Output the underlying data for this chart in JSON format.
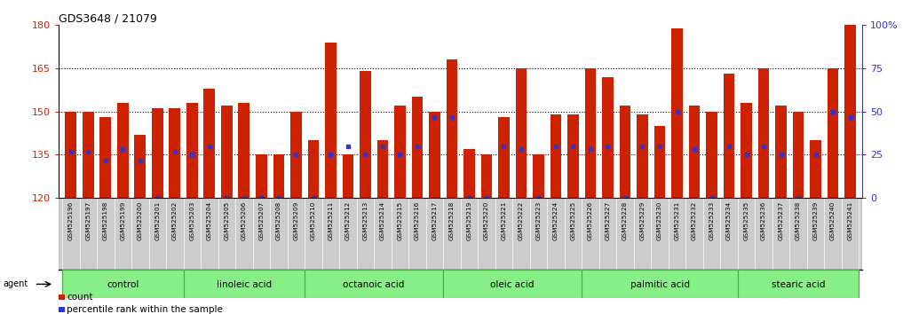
{
  "title": "GDS3648 / 21079",
  "samples": [
    "GSM525196",
    "GSM525197",
    "GSM525198",
    "GSM525199",
    "GSM525200",
    "GSM525201",
    "GSM525202",
    "GSM525203",
    "GSM525204",
    "GSM525205",
    "GSM525206",
    "GSM525207",
    "GSM525208",
    "GSM525209",
    "GSM525210",
    "GSM525211",
    "GSM525212",
    "GSM525213",
    "GSM525214",
    "GSM525215",
    "GSM525216",
    "GSM525217",
    "GSM525218",
    "GSM525219",
    "GSM525220",
    "GSM525221",
    "GSM525222",
    "GSM525223",
    "GSM525224",
    "GSM525225",
    "GSM525226",
    "GSM525227",
    "GSM525228",
    "GSM525229",
    "GSM525230",
    "GSM525231",
    "GSM525232",
    "GSM525233",
    "GSM525234",
    "GSM525235",
    "GSM525236",
    "GSM525237",
    "GSM525238",
    "GSM525239",
    "GSM525240",
    "GSM525241"
  ],
  "bar_heights": [
    150,
    150,
    148,
    153,
    142,
    151,
    151,
    153,
    158,
    152,
    153,
    135,
    135,
    150,
    140,
    174,
    135,
    164,
    140,
    152,
    155,
    150,
    168,
    137,
    135,
    148,
    165,
    135,
    149,
    149,
    165,
    162,
    152,
    149,
    145,
    179,
    152,
    150,
    163,
    153,
    165,
    152,
    150,
    140,
    165,
    180
  ],
  "blue_dot_positions": [
    136,
    136,
    133,
    137,
    133,
    120,
    136,
    135,
    138,
    120,
    120,
    120,
    120,
    135,
    120,
    135,
    138,
    135,
    138,
    135,
    138,
    148,
    148,
    120,
    120,
    138,
    137,
    120,
    138,
    138,
    137,
    138,
    120,
    138,
    138,
    150,
    137,
    120,
    138,
    135,
    138,
    135,
    120,
    135,
    150,
    148
  ],
  "groups": [
    {
      "label": "control",
      "start": 0,
      "end": 7
    },
    {
      "label": "linoleic acid",
      "start": 7,
      "end": 14
    },
    {
      "label": "octanoic acid",
      "start": 14,
      "end": 22
    },
    {
      "label": "oleic acid",
      "start": 22,
      "end": 30
    },
    {
      "label": "palmitic acid",
      "start": 30,
      "end": 39
    },
    {
      "label": "stearic acid",
      "start": 39,
      "end": 46
    }
  ],
  "bar_color": "#cc2200",
  "dot_color": "#3333cc",
  "ylim": [
    120,
    180
  ],
  "right_ylim": [
    0,
    100
  ],
  "yticks_left": [
    120,
    135,
    150,
    165,
    180
  ],
  "yticks_right": [
    0,
    25,
    50,
    75,
    100
  ],
  "hlines": [
    135,
    150,
    165
  ],
  "group_bg_color": "#88ee88",
  "group_border_color": "#44aa44",
  "tick_area_color": "#cccccc",
  "legend_count_color": "#cc2200",
  "legend_dot_color": "#3333cc",
  "bar_width": 0.65
}
